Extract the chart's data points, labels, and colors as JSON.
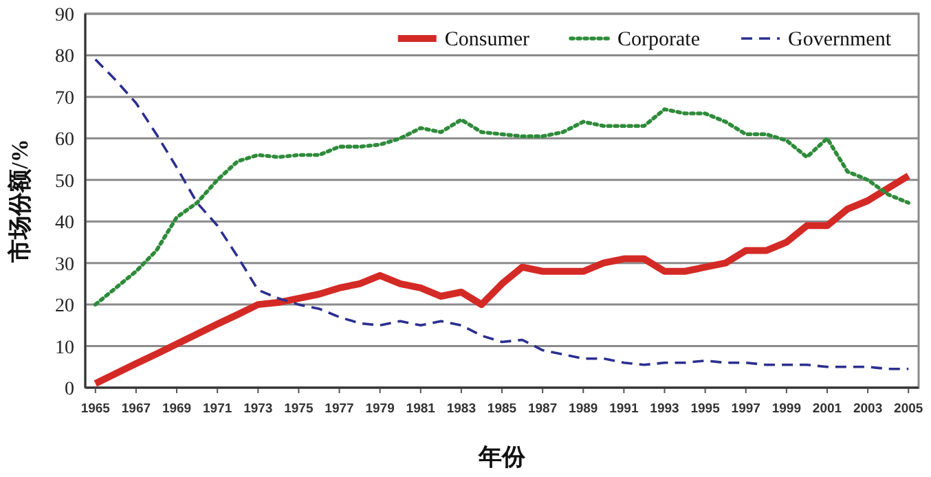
{
  "chart_data": {
    "type": "line",
    "xlabel": "年份",
    "ylabel": "市场份额/%",
    "x": [
      1965,
      1966,
      1967,
      1968,
      1969,
      1970,
      1971,
      1972,
      1973,
      1974,
      1975,
      1976,
      1977,
      1978,
      1979,
      1980,
      1981,
      1982,
      1983,
      1984,
      1985,
      1986,
      1987,
      1988,
      1989,
      1990,
      1991,
      1992,
      1993,
      1994,
      1995,
      1996,
      1997,
      1998,
      1999,
      2000,
      2001,
      2002,
      2003,
      2004,
      2005
    ],
    "series": [
      {
        "name": "Consumer",
        "color": "#d42a26",
        "line_style": "solid",
        "values": [
          1,
          3.4,
          5.8,
          8.1,
          10.5,
          12.9,
          15.3,
          17.6,
          20,
          20.5,
          21.5,
          22.5,
          24,
          25,
          27,
          25,
          24,
          22,
          23,
          20,
          25,
          29,
          28,
          28,
          28,
          30,
          31,
          31,
          28,
          28,
          29,
          30,
          33,
          33,
          35,
          39,
          39,
          43,
          45,
          48,
          51
        ]
      },
      {
        "name": "Corporate",
        "color": "#2e8b3a",
        "line_style": "dotted",
        "values": [
          20,
          24,
          28,
          33,
          41,
          44.5,
          50,
          54.5,
          56,
          55.5,
          56,
          56,
          58,
          58,
          58.5,
          60,
          62.5,
          61.5,
          64.5,
          61.5,
          61,
          60.5,
          60.5,
          61.5,
          64,
          63,
          63,
          63,
          67,
          66,
          66,
          64,
          61,
          61,
          59.5,
          55.5,
          60,
          52,
          50,
          46.5,
          44.5
        ]
      },
      {
        "name": "Government",
        "color": "#2b2f8f",
        "line_style": "dashed",
        "values": [
          79,
          74,
          68.5,
          61,
          53,
          44.5,
          39,
          31.5,
          23.5,
          21.5,
          20,
          19,
          17,
          15.5,
          15,
          16,
          15,
          16,
          15,
          12.5,
          11,
          11.5,
          9,
          8,
          7,
          7,
          6,
          5.5,
          6,
          6,
          6.5,
          6,
          6,
          5.5,
          5.5,
          5.5,
          5,
          5,
          5,
          4.5,
          4.5
        ]
      }
    ],
    "xlim": [
      1964.5,
      2005.5
    ],
    "xticks": [
      1965,
      1967,
      1969,
      1971,
      1973,
      1975,
      1977,
      1979,
      1981,
      1983,
      1985,
      1987,
      1989,
      1991,
      1993,
      1995,
      1997,
      1999,
      2001,
      2003,
      2005
    ],
    "ylim": [
      0,
      90
    ],
    "yticks": [
      0,
      10,
      20,
      30,
      40,
      50,
      60,
      70,
      80,
      90
    ],
    "grid": "y",
    "legend": "top right",
    "marker": "none"
  }
}
